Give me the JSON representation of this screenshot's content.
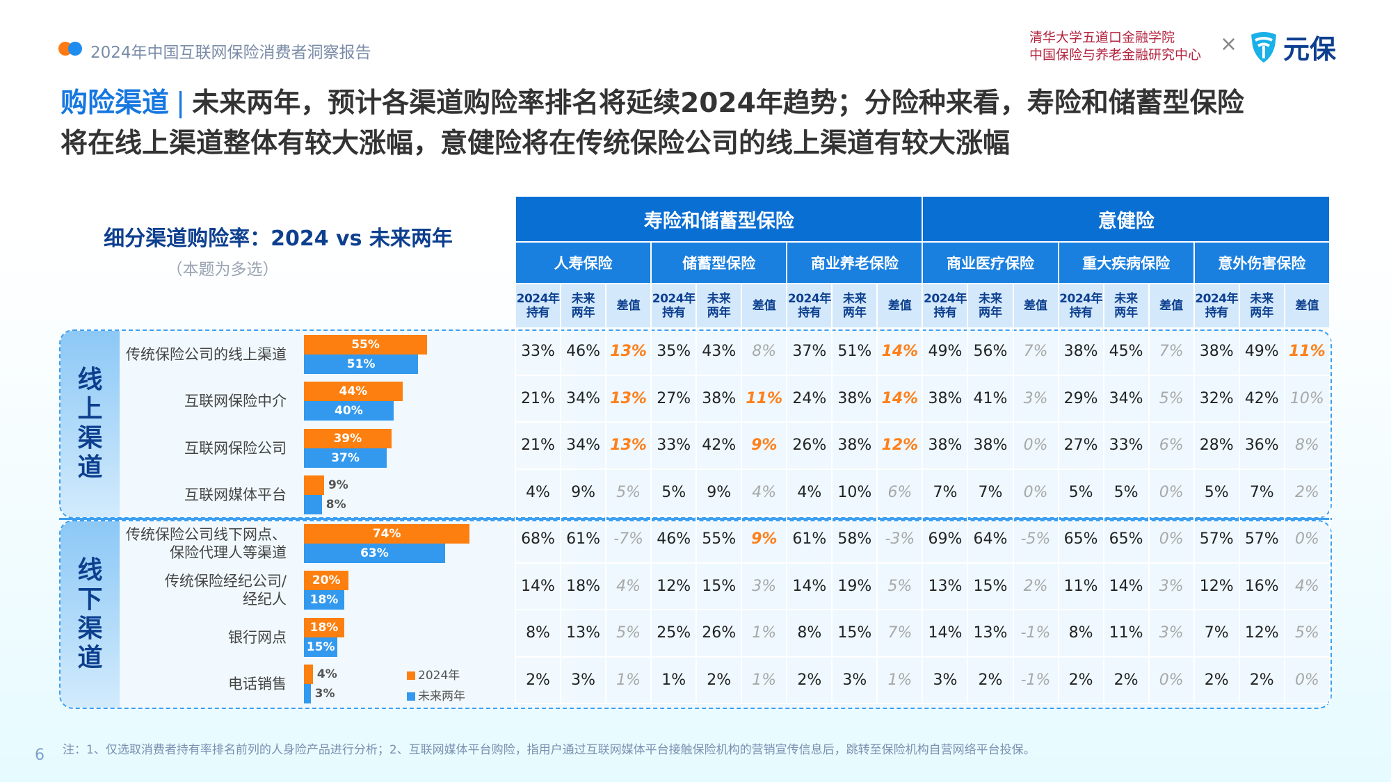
{
  "header": {
    "report_title": "2024年中国互联网保险消费者洞察报告",
    "institution_line1": "清华大学五道口金融学院",
    "institution_line2": "中国保险与养老金融研究中心",
    "times": "×",
    "logo_text": "元保"
  },
  "title": {
    "keyword": "购险渠道",
    "separator": "|",
    "line1": "未来两年，预计各渠道购险率排名将延续2024年趋势；分险种来看，寿险和储蓄型保险",
    "line2": "将在线上渠道整体有较大涨幅，意健险将在传统保险公司的线上渠道有较大涨幅"
  },
  "chart_title": "细分渠道购险率：2024 vs 未来两年",
  "chart_note": "（本题为多选）",
  "groups": [
    {
      "label": "线上渠道",
      "chars": [
        "线",
        "上",
        "渠",
        "道"
      ]
    },
    {
      "label": "线下渠道",
      "chars": [
        "线",
        "下",
        "渠",
        "道"
      ]
    }
  ],
  "legend": {
    "a": "2024年",
    "b": "未来两年"
  },
  "colors": {
    "y2024": "#fd7f0f",
    "future": "#3399ee",
    "header": "#0a6fd3",
    "increase": "#ff7f1a",
    "neutral": "#a8a8a8"
  },
  "chart_data": {
    "type": "bar",
    "orientation": "horizontal",
    "categories": [
      "传统保险公司的线上渠道",
      "互联网保险中介",
      "互联网保险公司",
      "互联网媒体平台",
      "传统保险公司线下网点、保险代理人等渠道",
      "传统保险经纪公司/经纪人",
      "银行网点",
      "电话销售"
    ],
    "series": [
      {
        "name": "2024年",
        "values": [
          55,
          44,
          39,
          9,
          74,
          20,
          18,
          4
        ]
      },
      {
        "name": "未来两年",
        "values": [
          51,
          40,
          37,
          8,
          63,
          18,
          15,
          3
        ]
      }
    ],
    "unit": "%"
  },
  "table": {
    "groups": [
      "寿险和储蓄型保险",
      "意健险"
    ],
    "products": [
      "人寿保险",
      "储蓄型保险",
      "商业养老保险",
      "商业医疗保险",
      "重大疾病保险",
      "意外伤害保险"
    ],
    "cols": [
      "2024年持有",
      "未来两年",
      "差值"
    ],
    "rows": [
      [
        "33%",
        "46%",
        "13%",
        "35%",
        "43%",
        "8%",
        "37%",
        "51%",
        "14%",
        "49%",
        "56%",
        "7%",
        "38%",
        "45%",
        "7%",
        "38%",
        "49%",
        "11%"
      ],
      [
        "21%",
        "34%",
        "13%",
        "27%",
        "38%",
        "11%",
        "24%",
        "38%",
        "14%",
        "38%",
        "41%",
        "3%",
        "29%",
        "34%",
        "5%",
        "32%",
        "42%",
        "10%"
      ],
      [
        "21%",
        "34%",
        "13%",
        "33%",
        "42%",
        "9%",
        "26%",
        "38%",
        "12%",
        "38%",
        "38%",
        "0%",
        "27%",
        "33%",
        "6%",
        "28%",
        "36%",
        "8%"
      ],
      [
        "4%",
        "9%",
        "5%",
        "5%",
        "9%",
        "4%",
        "4%",
        "10%",
        "6%",
        "7%",
        "7%",
        "0%",
        "5%",
        "5%",
        "0%",
        "5%",
        "7%",
        "2%"
      ],
      [
        "68%",
        "61%",
        "-7%",
        "46%",
        "55%",
        "9%",
        "61%",
        "58%",
        "-3%",
        "69%",
        "64%",
        "-5%",
        "65%",
        "65%",
        "0%",
        "57%",
        "57%",
        "0%"
      ],
      [
        "14%",
        "18%",
        "4%",
        "12%",
        "15%",
        "3%",
        "14%",
        "19%",
        "5%",
        "13%",
        "15%",
        "2%",
        "11%",
        "14%",
        "3%",
        "12%",
        "16%",
        "4%"
      ],
      [
        "8%",
        "13%",
        "5%",
        "25%",
        "26%",
        "1%",
        "8%",
        "15%",
        "7%",
        "14%",
        "13%",
        "-1%",
        "8%",
        "11%",
        "3%",
        "7%",
        "12%",
        "5%"
      ],
      [
        "2%",
        "3%",
        "1%",
        "1%",
        "2%",
        "1%",
        "2%",
        "3%",
        "1%",
        "3%",
        "2%",
        "-1%",
        "2%",
        "2%",
        "0%",
        "2%",
        "2%",
        "0%"
      ]
    ],
    "highlighted": [
      [
        2,
        8,
        17
      ],
      [
        2,
        5,
        8
      ],
      [
        2,
        5,
        8
      ],
      [],
      [
        5
      ],
      [],
      [],
      []
    ]
  },
  "page_number": "6",
  "footnote": "注：1、仅选取消费者持有率排名前列的人身险产品进行分析；2、互联网媒体平台购险，指用户通过互联网媒体平台接触保险机构的营销宣传信息后，跳转至保险机构自营网络平台投保。"
}
